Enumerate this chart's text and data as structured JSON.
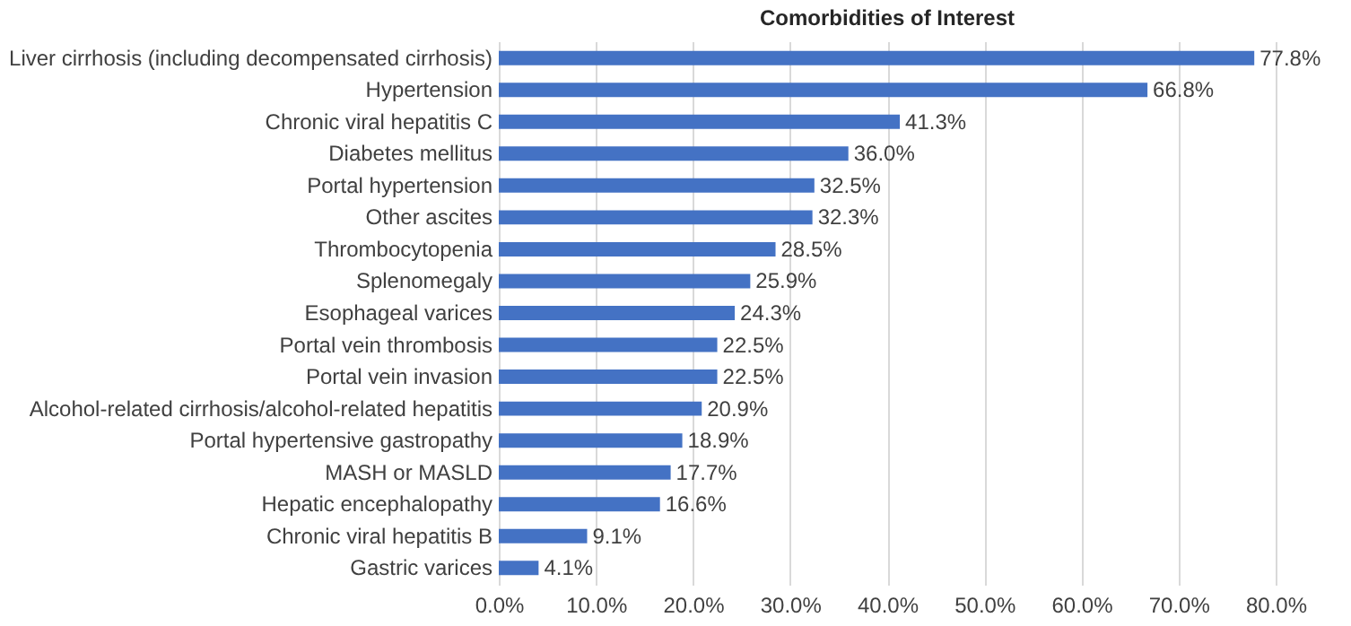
{
  "chart_data": {
    "type": "bar",
    "orientation": "horizontal",
    "title": "Comorbidities of Interest",
    "categories": [
      "Liver cirrhosis (including decompensated cirrhosis)",
      "Hypertension",
      "Chronic viral hepatitis C",
      "Diabetes mellitus",
      "Portal hypertension",
      "Other ascites",
      "Thrombocytopenia",
      "Splenomegaly",
      "Esophageal varices",
      "Portal vein thrombosis",
      "Portal vein invasion",
      "Alcohol-related cirrhosis/alcohol-related hepatitis",
      "Portal hypertensive gastropathy",
      "MASH or MASLD",
      "Hepatic encephalopathy",
      "Chronic viral hepatitis B",
      "Gastric varices"
    ],
    "values": [
      77.8,
      66.8,
      41.3,
      36.0,
      32.5,
      32.3,
      28.5,
      25.9,
      24.3,
      22.5,
      22.5,
      20.9,
      18.9,
      17.7,
      16.6,
      9.1,
      4.1
    ],
    "value_labels": [
      "77.8%",
      "66.8%",
      "41.3%",
      "36.0%",
      "32.5%",
      "32.3%",
      "28.5%",
      "25.9%",
      "24.3%",
      "22.5%",
      "22.5%",
      "20.9%",
      "18.9%",
      "17.7%",
      "16.6%",
      "9.1%",
      "4.1%"
    ],
    "color": "#4472c4",
    "xlim": [
      0,
      80
    ],
    "xticks": [
      {
        "value": 0,
        "label": "0.0%"
      },
      {
        "value": 10,
        "label": "10.0%"
      },
      {
        "value": 20,
        "label": "20.0%"
      },
      {
        "value": 30,
        "label": "30.0%"
      },
      {
        "value": 40,
        "label": "40.0%"
      },
      {
        "value": 50,
        "label": "50.0%"
      },
      {
        "value": 60,
        "label": "60.0%"
      },
      {
        "value": 70,
        "label": "70.0%"
      },
      {
        "value": 80,
        "label": "80.0%"
      }
    ],
    "grid": "x"
  }
}
